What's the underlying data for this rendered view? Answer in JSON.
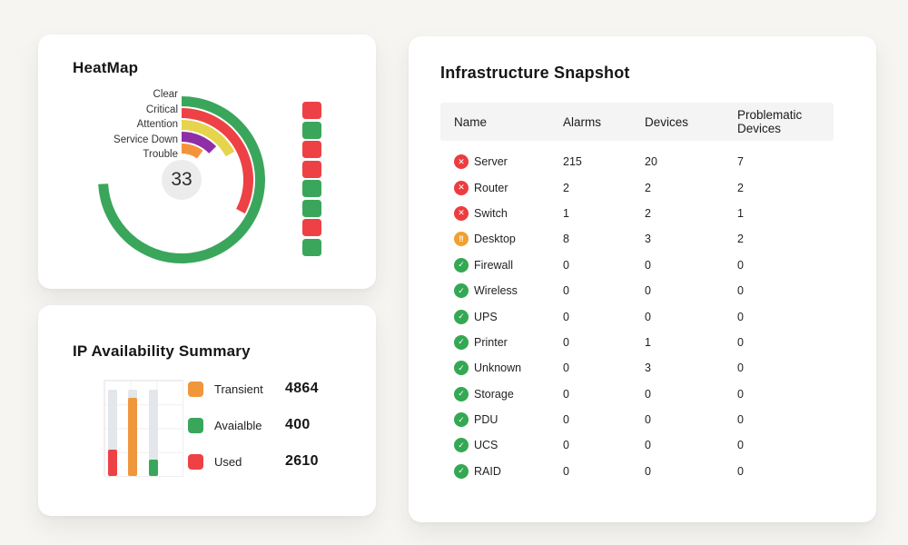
{
  "page": {
    "background": "#f7f5f1"
  },
  "colors": {
    "red": "#ee4145",
    "green": "#3aa65c",
    "orange": "#f0973c",
    "yellow": "#e6d44c",
    "purple": "#8e2fa6",
    "bar_track": "#e3e6ea"
  },
  "heatmap_card": {
    "title": "HeatMap",
    "chart_data": {
      "type": "radial-bar",
      "center_value": "33",
      "rings": [
        {
          "label": "Clear",
          "sweep_deg": 267,
          "color": "#3aa65c"
        },
        {
          "label": "Critical",
          "sweep_deg": 118,
          "color": "#ee4145"
        },
        {
          "label": "Attention",
          "sweep_deg": 62,
          "color": "#e6d44c"
        },
        {
          "label": "Service Down",
          "sweep_deg": 46,
          "color": "#8e2fa6"
        },
        {
          "label": "Trouble",
          "sweep_deg": 36,
          "color": "#f5933c"
        }
      ],
      "status_squares": [
        "red",
        "green",
        "red",
        "red",
        "green",
        "green",
        "red",
        "green"
      ]
    }
  },
  "ip_card": {
    "title": "IP Availability Summary",
    "chart_data": {
      "type": "bar",
      "bars": [
        {
          "name": "Used",
          "color": "#ee4145",
          "fill_pct": 31
        },
        {
          "name": "Transient",
          "color": "#f0973c",
          "fill_pct": 90
        },
        {
          "name": "Avaialble",
          "color": "#3aa65c",
          "fill_pct": 19
        }
      ],
      "legend": [
        {
          "label": "Transient",
          "value": "4864",
          "color": "#f0973c"
        },
        {
          "label": "Avaialble",
          "value": "400",
          "color": "#3aa65c"
        },
        {
          "label": "Used",
          "value": "2610",
          "color": "#ee4145"
        }
      ]
    }
  },
  "table_card": {
    "title": "Infrastructure Snapshot",
    "columns": [
      "Name",
      "Alarms",
      "Devices",
      "Problematic Devices"
    ],
    "status_icons": {
      "critical": {
        "color": "#ed3c40",
        "glyph": "✕"
      },
      "attention": {
        "color": "#f0a030",
        "glyph": "‼"
      },
      "clear": {
        "color": "#34a853",
        "glyph": "✓"
      }
    },
    "rows": [
      {
        "name": "Server",
        "status": "critical",
        "alarms": "215",
        "devices": "20",
        "problematic": "7"
      },
      {
        "name": "Router",
        "status": "critical",
        "alarms": "2",
        "devices": "2",
        "problematic": "2"
      },
      {
        "name": "Switch",
        "status": "critical",
        "alarms": "1",
        "devices": "2",
        "problematic": "1"
      },
      {
        "name": "Desktop",
        "status": "attention",
        "alarms": "8",
        "devices": "3",
        "problematic": "2"
      },
      {
        "name": "Firewall",
        "status": "clear",
        "alarms": "0",
        "devices": "0",
        "problematic": "0"
      },
      {
        "name": "Wireless",
        "status": "clear",
        "alarms": "0",
        "devices": "0",
        "problematic": "0"
      },
      {
        "name": "UPS",
        "status": "clear",
        "alarms": "0",
        "devices": "0",
        "problematic": "0"
      },
      {
        "name": "Printer",
        "status": "clear",
        "alarms": "0",
        "devices": "1",
        "problematic": "0"
      },
      {
        "name": "Unknown",
        "status": "clear",
        "alarms": "0",
        "devices": "3",
        "problematic": "0"
      },
      {
        "name": "Storage",
        "status": "clear",
        "alarms": "0",
        "devices": "0",
        "problematic": "0"
      },
      {
        "name": "PDU",
        "status": "clear",
        "alarms": "0",
        "devices": "0",
        "problematic": "0"
      },
      {
        "name": "UCS",
        "status": "clear",
        "alarms": "0",
        "devices": "0",
        "problematic": "0"
      },
      {
        "name": "RAID",
        "status": "clear",
        "alarms": "0",
        "devices": "0",
        "problematic": "0"
      }
    ]
  }
}
